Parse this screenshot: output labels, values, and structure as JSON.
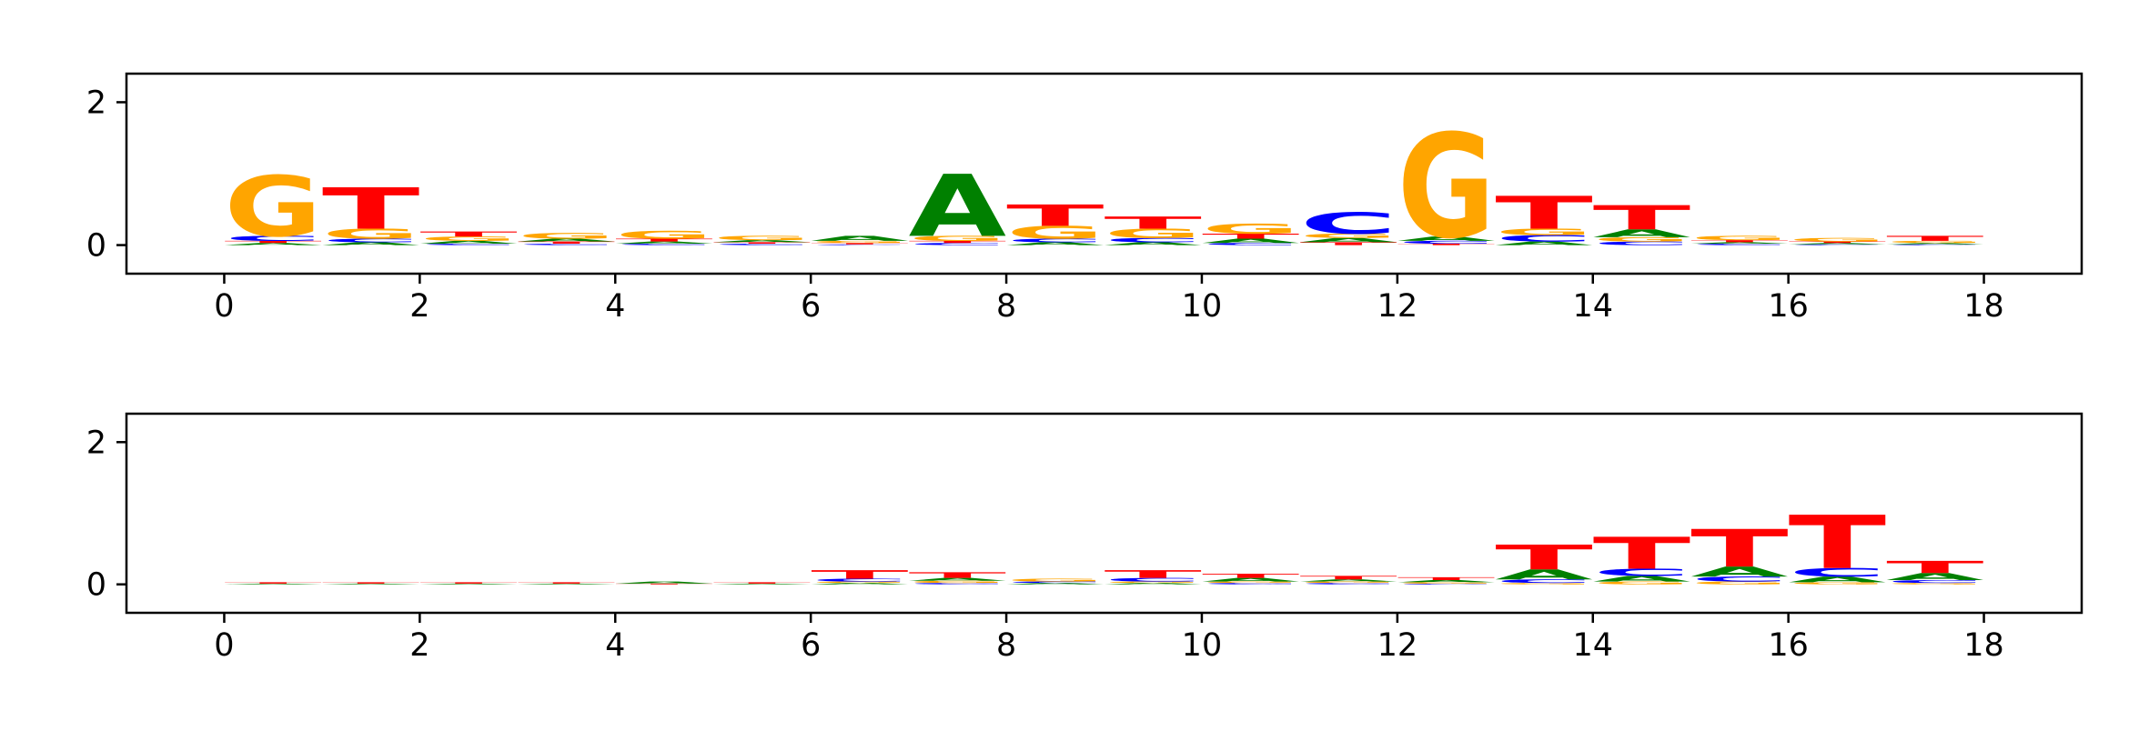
{
  "chart_data": [
    {
      "type": "sequence-logo",
      "title": "",
      "xlabel": "",
      "ylabel": "",
      "xlim": [
        -1,
        19
      ],
      "ylim": [
        -0.4,
        2.4
      ],
      "xticks": [
        0,
        2,
        4,
        6,
        8,
        10,
        12,
        14,
        16,
        18
      ],
      "yticks": [
        0,
        2
      ],
      "grid": false,
      "colors": {
        "A": "#008000",
        "C": "#0000ff",
        "G": "#ffa500",
        "T": "#ff0000"
      },
      "positions": [
        {
          "x": 0,
          "letters": [
            {
              "base": "A",
              "h": 0.03
            },
            {
              "base": "T",
              "h": 0.03
            },
            {
              "base": "C",
              "h": 0.07
            },
            {
              "base": "G",
              "h": 0.85
            }
          ]
        },
        {
          "x": 1,
          "letters": [
            {
              "base": "A",
              "h": 0.04
            },
            {
              "base": "C",
              "h": 0.05
            },
            {
              "base": "G",
              "h": 0.14
            },
            {
              "base": "T",
              "h": 0.58
            }
          ]
        },
        {
          "x": 2,
          "letters": [
            {
              "base": "C",
              "h": 0.02
            },
            {
              "base": "A",
              "h": 0.04
            },
            {
              "base": "G",
              "h": 0.06
            },
            {
              "base": "T",
              "h": 0.07
            }
          ]
        },
        {
          "x": 3,
          "letters": [
            {
              "base": "C",
              "h": 0.02
            },
            {
              "base": "T",
              "h": 0.03
            },
            {
              "base": "A",
              "h": 0.04
            },
            {
              "base": "G",
              "h": 0.08
            }
          ]
        },
        {
          "x": 4,
          "letters": [
            {
              "base": "C",
              "h": 0.02
            },
            {
              "base": "A",
              "h": 0.03
            },
            {
              "base": "T",
              "h": 0.04
            },
            {
              "base": "G",
              "h": 0.11
            }
          ]
        },
        {
          "x": 5,
          "letters": [
            {
              "base": "C",
              "h": 0.02
            },
            {
              "base": "T",
              "h": 0.02
            },
            {
              "base": "A",
              "h": 0.03
            },
            {
              "base": "G",
              "h": 0.06
            }
          ]
        },
        {
          "x": 6,
          "letters": [
            {
              "base": "C",
              "h": 0.01
            },
            {
              "base": "T",
              "h": 0.02
            },
            {
              "base": "G",
              "h": 0.03
            },
            {
              "base": "A",
              "h": 0.07
            }
          ]
        },
        {
          "x": 7,
          "letters": [
            {
              "base": "C",
              "h": 0.03
            },
            {
              "base": "T",
              "h": 0.03
            },
            {
              "base": "G",
              "h": 0.07
            },
            {
              "base": "A",
              "h": 0.87
            }
          ]
        },
        {
          "x": 8,
          "letters": [
            {
              "base": "A",
              "h": 0.04
            },
            {
              "base": "C",
              "h": 0.05
            },
            {
              "base": "G",
              "h": 0.18
            },
            {
              "base": "T",
              "h": 0.3
            }
          ]
        },
        {
          "x": 9,
          "letters": [
            {
              "base": "A",
              "h": 0.04
            },
            {
              "base": "C",
              "h": 0.06
            },
            {
              "base": "G",
              "h": 0.13
            },
            {
              "base": "T",
              "h": 0.17
            }
          ]
        },
        {
          "x": 10,
          "letters": [
            {
              "base": "C",
              "h": 0.03
            },
            {
              "base": "A",
              "h": 0.06
            },
            {
              "base": "T",
              "h": 0.07
            },
            {
              "base": "G",
              "h": 0.14
            }
          ]
        },
        {
          "x": 11,
          "letters": [
            {
              "base": "T",
              "h": 0.04
            },
            {
              "base": "A",
              "h": 0.06
            },
            {
              "base": "G",
              "h": 0.06
            },
            {
              "base": "C",
              "h": 0.3
            }
          ]
        },
        {
          "x": 12,
          "letters": [
            {
              "base": "T",
              "h": 0.02
            },
            {
              "base": "C",
              "h": 0.04
            },
            {
              "base": "A",
              "h": 0.06
            },
            {
              "base": "G",
              "h": 1.46
            }
          ]
        },
        {
          "x": 13,
          "letters": [
            {
              "base": "A",
              "h": 0.05
            },
            {
              "base": "C",
              "h": 0.09
            },
            {
              "base": "G",
              "h": 0.09
            },
            {
              "base": "T",
              "h": 0.46
            }
          ]
        },
        {
          "x": 14,
          "letters": [
            {
              "base": "C",
              "h": 0.05
            },
            {
              "base": "G",
              "h": 0.06
            },
            {
              "base": "A",
              "h": 0.11
            },
            {
              "base": "T",
              "h": 0.34
            }
          ]
        },
        {
          "x": 15,
          "letters": [
            {
              "base": "C",
              "h": 0.02
            },
            {
              "base": "A",
              "h": 0.02
            },
            {
              "base": "T",
              "h": 0.03
            },
            {
              "base": "G",
              "h": 0.06
            }
          ]
        },
        {
          "x": 16,
          "letters": [
            {
              "base": "C",
              "h": 0.01
            },
            {
              "base": "A",
              "h": 0.02
            },
            {
              "base": "T",
              "h": 0.02
            },
            {
              "base": "G",
              "h": 0.05
            }
          ]
        },
        {
          "x": 17,
          "letters": [
            {
              "base": "C",
              "h": 0.01
            },
            {
              "base": "A",
              "h": 0.02
            },
            {
              "base": "G",
              "h": 0.03
            },
            {
              "base": "T",
              "h": 0.07
            }
          ]
        }
      ]
    },
    {
      "type": "sequence-logo",
      "title": "",
      "xlabel": "",
      "ylabel": "",
      "xlim": [
        -1,
        19
      ],
      "ylim": [
        -0.4,
        2.4
      ],
      "xticks": [
        0,
        2,
        4,
        6,
        8,
        10,
        12,
        14,
        16,
        18
      ],
      "yticks": [
        0,
        2
      ],
      "grid": false,
      "colors": {
        "A": "#008000",
        "C": "#0000ff",
        "G": "#ffa500",
        "T": "#ff0000"
      },
      "positions": [
        {
          "x": 0,
          "letters": [
            {
              "base": "A",
              "h": 0.01
            },
            {
              "base": "T",
              "h": 0.02
            }
          ]
        },
        {
          "x": 1,
          "letters": [
            {
              "base": "A",
              "h": 0.01
            },
            {
              "base": "T",
              "h": 0.02
            }
          ]
        },
        {
          "x": 2,
          "letters": [
            {
              "base": "A",
              "h": 0.01
            },
            {
              "base": "T",
              "h": 0.02
            }
          ]
        },
        {
          "x": 3,
          "letters": [
            {
              "base": "A",
              "h": 0.01
            },
            {
              "base": "T",
              "h": 0.02
            }
          ]
        },
        {
          "x": 4,
          "letters": [
            {
              "base": "T",
              "h": 0.01
            },
            {
              "base": "A",
              "h": 0.03
            }
          ]
        },
        {
          "x": 5,
          "letters": [
            {
              "base": "A",
              "h": 0.01
            },
            {
              "base": "T",
              "h": 0.02
            }
          ]
        },
        {
          "x": 6,
          "letters": [
            {
              "base": "A",
              "h": 0.02
            },
            {
              "base": "G",
              "h": 0.02
            },
            {
              "base": "C",
              "h": 0.04
            },
            {
              "base": "T",
              "h": 0.12
            }
          ]
        },
        {
          "x": 7,
          "letters": [
            {
              "base": "C",
              "h": 0.02
            },
            {
              "base": "G",
              "h": 0.03
            },
            {
              "base": "A",
              "h": 0.04
            },
            {
              "base": "T",
              "h": 0.08
            }
          ]
        },
        {
          "x": 8,
          "letters": [
            {
              "base": "A",
              "h": 0.02
            },
            {
              "base": "C",
              "h": 0.02
            },
            {
              "base": "G",
              "h": 0.04
            }
          ]
        },
        {
          "x": 9,
          "letters": [
            {
              "base": "A",
              "h": 0.02
            },
            {
              "base": "G",
              "h": 0.02
            },
            {
              "base": "C",
              "h": 0.05
            },
            {
              "base": "T",
              "h": 0.11
            }
          ]
        },
        {
          "x": 10,
          "letters": [
            {
              "base": "C",
              "h": 0.02
            },
            {
              "base": "G",
              "h": 0.02
            },
            {
              "base": "A",
              "h": 0.05
            },
            {
              "base": "T",
              "h": 0.06
            }
          ]
        },
        {
          "x": 11,
          "letters": [
            {
              "base": "C",
              "h": 0.02
            },
            {
              "base": "G",
              "h": 0.02
            },
            {
              "base": "A",
              "h": 0.03
            },
            {
              "base": "T",
              "h": 0.05
            }
          ]
        },
        {
          "x": 12,
          "letters": [
            {
              "base": "C",
              "h": 0.01
            },
            {
              "base": "G",
              "h": 0.02
            },
            {
              "base": "A",
              "h": 0.03
            },
            {
              "base": "T",
              "h": 0.04
            }
          ]
        },
        {
          "x": 13,
          "letters": [
            {
              "base": "G",
              "h": 0.02
            },
            {
              "base": "C",
              "h": 0.05
            },
            {
              "base": "A",
              "h": 0.14
            },
            {
              "base": "T",
              "h": 0.35
            }
          ]
        },
        {
          "x": 14,
          "letters": [
            {
              "base": "G",
              "h": 0.04
            },
            {
              "base": "A",
              "h": 0.08
            },
            {
              "base": "C",
              "h": 0.1
            },
            {
              "base": "T",
              "h": 0.45
            }
          ]
        },
        {
          "x": 15,
          "letters": [
            {
              "base": "G",
              "h": 0.04
            },
            {
              "base": "C",
              "h": 0.07
            },
            {
              "base": "A",
              "h": 0.14
            },
            {
              "base": "T",
              "h": 0.53
            }
          ]
        },
        {
          "x": 16,
          "letters": [
            {
              "base": "G",
              "h": 0.03
            },
            {
              "base": "A",
              "h": 0.08
            },
            {
              "base": "C",
              "h": 0.12
            },
            {
              "base": "T",
              "h": 0.75
            }
          ]
        },
        {
          "x": 17,
          "letters": [
            {
              "base": "G",
              "h": 0.02
            },
            {
              "base": "C",
              "h": 0.04
            },
            {
              "base": "A",
              "h": 0.1
            },
            {
              "base": "T",
              "h": 0.17
            }
          ]
        }
      ]
    }
  ]
}
